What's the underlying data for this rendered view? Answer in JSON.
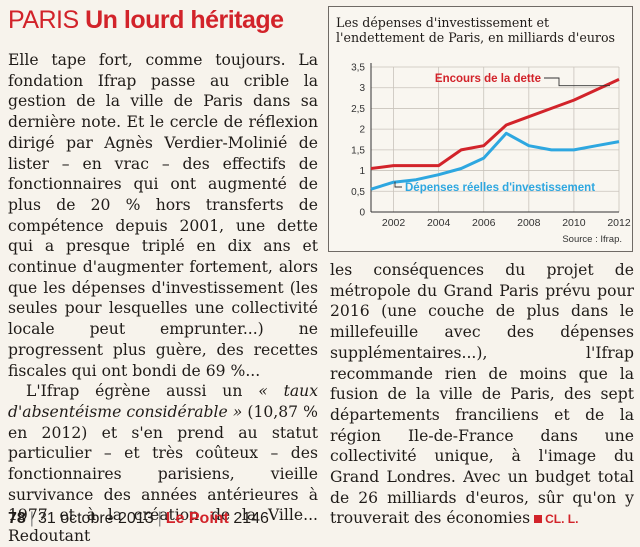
{
  "headline": {
    "kicker": "PARIS",
    "title": "Un lourd héritage"
  },
  "article": {
    "col1": [
      "Elle tape fort, comme toujours. La fondation Ifrap passe au crible la gestion de la ville de Paris dans sa dernière note. Et le cercle de réflexion dirigé par Agnès Verdier-Molinié de lister – en vrac – des effectifs de fonctionnaires qui ont augmenté de plus de 20 % hors transferts de compétence depuis 2001, une dette qui a presque triplé en dix ans et continue d'augmenter fortement, alors que les dépenses d'investissement (les seules pour lesquelles une collectivité locale peut emprunter...) ne progressent plus guère, des recettes fiscales qui ont bondi de 69 %...",
      {
        "before": "L'Ifrap égrène aussi un ",
        "quote": "« taux d'absentéisme considérable »",
        "after": " (10,87 % en 2012) et s'en prend au statut particulier – et très coûteux – des fonctionnaires parisiens, vieille survivance des années antérieures à 1977 et à la création de la Ville... Redoutant"
      }
    ],
    "col2": "les conséquences du projet de métropole du Grand Paris prévu pour 2016 (une couche de plus dans le millefeuille avec des dépenses supplémentaires...), l'Ifrap recommande rien de moins que la fusion de la ville de Paris, des sept départements franciliens et de la région Ile-de-France dans une collectivité unique, à l'image du Grand Londres. Avec un budget total de 26 milliards d'euros, sûr qu'on y trouverait des économies",
    "signature": "CL. L."
  },
  "chart_data": {
    "type": "line",
    "title": "Les dépenses d'investissement et l'endettement de Paris, en milliards d'euros",
    "x": [
      2001,
      2002,
      2003,
      2004,
      2005,
      2006,
      2007,
      2008,
      2009,
      2010,
      2011,
      2012
    ],
    "xticks": [
      "2002",
      "2004",
      "2006",
      "2008",
      "2010",
      "2012"
    ],
    "yticks": [
      "0",
      "0,5",
      "1",
      "1,5",
      "2",
      "2,5",
      "3",
      "3,5"
    ],
    "ylim": [
      0,
      3.5
    ],
    "grid": true,
    "series": [
      {
        "name": "Encours de la dette",
        "color": "#d2232a",
        "values": [
          1.05,
          1.12,
          1.12,
          1.12,
          1.5,
          1.6,
          2.1,
          2.3,
          2.5,
          2.7,
          2.95,
          3.2
        ]
      },
      {
        "name": "Dépenses réelles d'investissement",
        "color": "#2ea7e0",
        "values": [
          0.55,
          0.72,
          0.78,
          0.9,
          1.05,
          1.3,
          1.9,
          1.6,
          1.5,
          1.5,
          1.6,
          1.7
        ]
      }
    ],
    "source": "Source : Ifrap."
  },
  "footer": {
    "page": "78",
    "date": "31 octobre 2013",
    "magazine": "Le Point",
    "issue": "2146"
  },
  "colors": {
    "accent": "#d2232a",
    "invest_line": "#2ea7e0"
  }
}
